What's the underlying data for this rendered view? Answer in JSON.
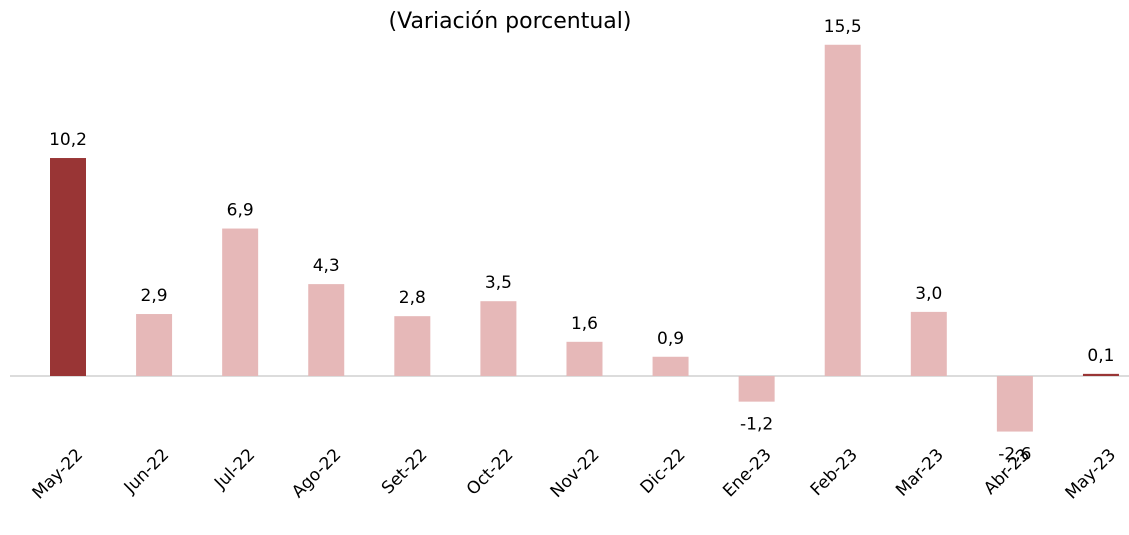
{
  "chart_data": {
    "type": "bar",
    "title": "(Variación porcentual)",
    "categories": [
      "May-22",
      "Jun-22",
      "Jul-22",
      "Ago-22",
      "Set-22",
      "Oct-22",
      "Nov-22",
      "Dic-22",
      "Ene-23",
      "Feb-23",
      "Mar-23",
      "Abr-23",
      "May-23"
    ],
    "values": [
      10.2,
      2.9,
      6.9,
      4.3,
      2.8,
      3.5,
      1.6,
      0.9,
      -1.2,
      15.5,
      3.0,
      -2.6,
      0.1
    ],
    "value_labels": [
      "10,2",
      "2,9",
      "6,9",
      "4,3",
      "2,8",
      "3,5",
      "1,6",
      "0,9",
      "-1,2",
      "15,5",
      "3,0",
      "-2,6",
      "0,1"
    ],
    "colors": [
      "#993535",
      "#e6b8b8",
      "#e6b8b8",
      "#e6b8b8",
      "#e6b8b8",
      "#e6b8b8",
      "#e6b8b8",
      "#e6b8b8",
      "#e6b8b8",
      "#e6b8b8",
      "#e6b8b8",
      "#e6b8b8",
      "#993535"
    ]
  }
}
